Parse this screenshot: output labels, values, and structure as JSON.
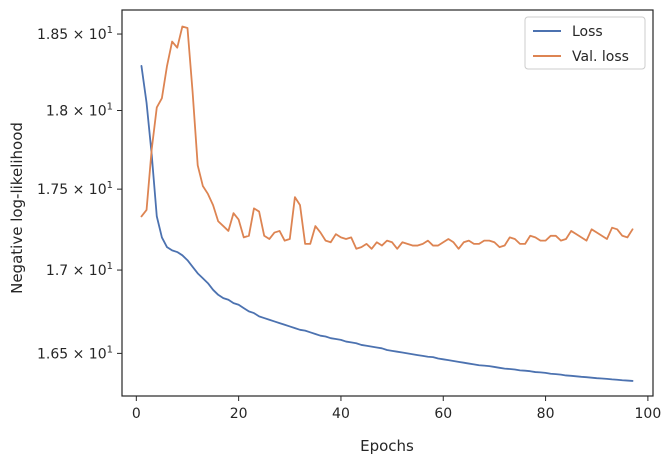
{
  "chart_data": {
    "type": "line",
    "title": "",
    "xlabel": "Epochs",
    "ylabel": "Negative log-likelihood",
    "yscale": "log",
    "xlim": [
      -2.8,
      101
    ],
    "ylim": [
      16.25,
      18.66
    ],
    "xticks": [
      0,
      20,
      40,
      60,
      80,
      100
    ],
    "xtick_labels": [
      "0",
      "20",
      "40",
      "60",
      "80",
      "100"
    ],
    "yticks": [
      16.5,
      17.0,
      17.5,
      18.0,
      18.5
    ],
    "ytick_labels": [
      {
        "mantissa": "1.65",
        "exponent": "1"
      },
      {
        "mantissa": "1.7",
        "exponent": "1"
      },
      {
        "mantissa": "1.75",
        "exponent": "1"
      },
      {
        "mantissa": "1.8",
        "exponent": "1"
      },
      {
        "mantissa": "1.85",
        "exponent": "1"
      }
    ],
    "grid": false,
    "legend_position": "top-right",
    "colors": {
      "Loss": "#4c72b0",
      "Val. loss": "#dd8452"
    },
    "series": [
      {
        "name": "Loss",
        "x": [
          1,
          2,
          3,
          4,
          5,
          6,
          7,
          8,
          9,
          10,
          11,
          12,
          13,
          14,
          15,
          16,
          17,
          18,
          19,
          20,
          21,
          22,
          23,
          24,
          25,
          26,
          27,
          28,
          29,
          30,
          31,
          32,
          33,
          34,
          35,
          36,
          37,
          38,
          39,
          40,
          41,
          42,
          43,
          44,
          45,
          46,
          47,
          48,
          49,
          50,
          51,
          52,
          53,
          54,
          55,
          56,
          57,
          58,
          59,
          60,
          61,
          62,
          63,
          64,
          65,
          66,
          67,
          68,
          69,
          70,
          71,
          72,
          73,
          74,
          75,
          76,
          77,
          78,
          79,
          80,
          81,
          82,
          83,
          84,
          85,
          86,
          87,
          88,
          89,
          90,
          91,
          92,
          93,
          94,
          95,
          96,
          97
        ],
        "values": [
          18.29,
          18.05,
          17.72,
          17.33,
          17.2,
          17.14,
          17.12,
          17.11,
          17.09,
          17.06,
          17.02,
          16.98,
          16.95,
          16.92,
          16.88,
          16.85,
          16.83,
          16.82,
          16.8,
          16.79,
          16.77,
          16.75,
          16.74,
          16.72,
          16.71,
          16.7,
          16.69,
          16.68,
          16.67,
          16.66,
          16.65,
          16.64,
          16.635,
          16.625,
          16.615,
          16.605,
          16.6,
          16.59,
          16.585,
          16.58,
          16.57,
          16.565,
          16.56,
          16.55,
          16.545,
          16.54,
          16.535,
          16.53,
          16.52,
          16.515,
          16.51,
          16.505,
          16.5,
          16.495,
          16.49,
          16.485,
          16.48,
          16.478,
          16.47,
          16.465,
          16.46,
          16.455,
          16.45,
          16.445,
          16.44,
          16.435,
          16.43,
          16.428,
          16.425,
          16.42,
          16.415,
          16.41,
          16.408,
          16.405,
          16.4,
          16.398,
          16.395,
          16.39,
          16.388,
          16.385,
          16.38,
          16.378,
          16.375,
          16.37,
          16.368,
          16.365,
          16.362,
          16.36,
          16.357,
          16.354,
          16.352,
          16.35,
          16.347,
          16.345,
          16.342,
          16.34,
          16.338
        ]
      },
      {
        "name": "Val. loss",
        "x": [
          1,
          2,
          3,
          4,
          5,
          6,
          7,
          8,
          9,
          10,
          11,
          12,
          13,
          14,
          15,
          16,
          17,
          18,
          19,
          20,
          21,
          22,
          23,
          24,
          25,
          26,
          27,
          28,
          29,
          30,
          31,
          32,
          33,
          34,
          35,
          36,
          37,
          38,
          39,
          40,
          41,
          42,
          43,
          44,
          45,
          46,
          47,
          48,
          49,
          50,
          51,
          52,
          53,
          54,
          55,
          56,
          57,
          58,
          59,
          60,
          61,
          62,
          63,
          64,
          65,
          66,
          67,
          68,
          69,
          70,
          71,
          72,
          73,
          74,
          75,
          76,
          77,
          78,
          79,
          80,
          81,
          82,
          83,
          84,
          85,
          86,
          87,
          88,
          89,
          90,
          91,
          92,
          93,
          94,
          95,
          96,
          97
        ],
        "values": [
          17.33,
          17.37,
          17.75,
          18.02,
          18.08,
          18.29,
          18.45,
          18.41,
          18.55,
          18.54,
          18.12,
          17.65,
          17.52,
          17.47,
          17.4,
          17.3,
          17.27,
          17.24,
          17.35,
          17.31,
          17.2,
          17.21,
          17.38,
          17.36,
          17.21,
          17.19,
          17.23,
          17.24,
          17.18,
          17.19,
          17.45,
          17.4,
          17.16,
          17.16,
          17.27,
          17.23,
          17.18,
          17.17,
          17.22,
          17.2,
          17.19,
          17.2,
          17.13,
          17.14,
          17.16,
          17.13,
          17.17,
          17.15,
          17.18,
          17.17,
          17.13,
          17.17,
          17.16,
          17.15,
          17.15,
          17.16,
          17.18,
          17.15,
          17.15,
          17.17,
          17.19,
          17.17,
          17.13,
          17.17,
          17.18,
          17.16,
          17.16,
          17.18,
          17.18,
          17.17,
          17.14,
          17.15,
          17.2,
          17.19,
          17.16,
          17.16,
          17.21,
          17.2,
          17.18,
          17.18,
          17.21,
          17.21,
          17.18,
          17.19,
          17.24,
          17.22,
          17.2,
          17.18,
          17.25,
          17.23,
          17.21,
          17.19,
          17.26,
          17.25,
          17.21,
          17.2,
          17.25
        ]
      }
    ]
  }
}
